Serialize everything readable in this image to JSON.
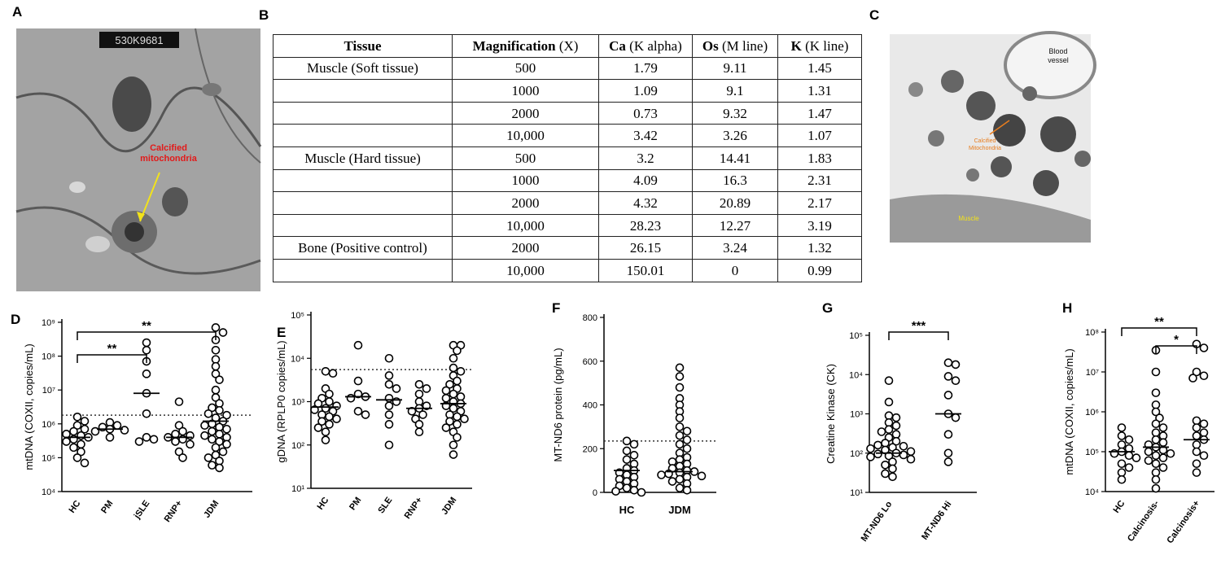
{
  "panel_labels": [
    "A",
    "B",
    "C",
    "D",
    "E",
    "F",
    "G",
    "H"
  ],
  "micrograph_a": {
    "stamp": "530K9681",
    "annotation": [
      "Calcified",
      "mitochondria"
    ]
  },
  "micrograph_c": {
    "vessel": [
      "Blood",
      "vessel"
    ],
    "mitochondria": [
      "Calcified",
      "Mitochondria"
    ],
    "muscle": "Muscle"
  },
  "table": {
    "header": [
      {
        "name": "Tissue"
      },
      {
        "name": "Magnification",
        "unit": "(X)"
      },
      {
        "name": "Ca",
        "unit": "(K alpha)"
      },
      {
        "name": "Os",
        "unit": "(M line)"
      },
      {
        "name": "K",
        "unit": "(K line)"
      }
    ],
    "rows": [
      [
        "Muscle (Soft tissue)",
        "500",
        "1.79",
        "9.11",
        "1.45"
      ],
      [
        null,
        "1000",
        "1.09",
        "9.1",
        "1.31"
      ],
      [
        null,
        "2000",
        "0.73",
        "9.32",
        "1.47"
      ],
      [
        null,
        "10,000",
        "3.42",
        "3.26",
        "1.07"
      ],
      [
        "Muscle (Hard tissue)",
        "500",
        "3.2",
        "14.41",
        "1.83"
      ],
      [
        null,
        "1000",
        "4.09",
        "16.3",
        "2.31"
      ],
      [
        null,
        "2000",
        "4.32",
        "20.89",
        "2.17"
      ],
      [
        null,
        "10,000",
        "28.23",
        "12.27",
        "3.19"
      ],
      [
        "Bone (Positive control)",
        "2000",
        "26.15",
        "3.24",
        "1.32"
      ],
      [
        null,
        "10,000",
        "150.01",
        "0",
        "0.99"
      ]
    ]
  },
  "chart_data": [
    {
      "type": "strip",
      "ylabel": "mtDNA (COXII, copies/mL)",
      "log_scale": true,
      "ylim": [
        10000,
        1000000000
      ],
      "yticks": [
        {
          "value": 10000,
          "label": "10⁴"
        },
        {
          "value": 100000,
          "label": "10⁵"
        },
        {
          "value": 1000000,
          "label": "10⁶"
        },
        {
          "value": 10000000,
          "label": "10⁷"
        },
        {
          "value": 100000000,
          "label": "10⁸"
        },
        {
          "value": 1000000000,
          "label": "10⁹"
        }
      ],
      "reference_line": 1800000,
      "groups": [
        {
          "name": "HC",
          "median": 400000,
          "values": [
            1600000,
            1200000,
            900000,
            700000,
            600000,
            500000,
            450000,
            400000,
            350000,
            300000,
            250000,
            200000,
            150000,
            100000,
            70000
          ]
        },
        {
          "name": "PM",
          "median": 700000,
          "values": [
            1100000,
            900000,
            800000,
            700000,
            650000,
            600000,
            400000
          ]
        },
        {
          "name": "jSLE",
          "median": 8000000,
          "values": [
            250000000,
            150000000,
            70000000,
            30000000,
            8000000,
            2000000,
            400000,
            350000,
            300000
          ]
        },
        {
          "name": "RNP+",
          "median": 400000,
          "values": [
            4500000,
            900000,
            600000,
            500000,
            450000,
            400000,
            350000,
            300000,
            250000,
            150000,
            100000
          ]
        },
        {
          "name": "JDM",
          "median": 1200000,
          "values": [
            700000000,
            500000000,
            300000000,
            150000000,
            80000000,
            50000000,
            30000000,
            20000000,
            10000000,
            6000000,
            4000000,
            3000000,
            2500000,
            2000000,
            1800000,
            1500000,
            1200000,
            1000000,
            900000,
            800000,
            700000,
            600000,
            500000,
            450000,
            400000,
            350000,
            300000,
            250000,
            200000,
            150000,
            120000,
            100000,
            80000,
            60000,
            50000
          ]
        }
      ],
      "annotations": [
        {
          "label": "**",
          "groups": [
            "HC",
            "jSLE"
          ]
        },
        {
          "label": "**",
          "groups": [
            "HC",
            "JDM"
          ]
        }
      ]
    },
    {
      "type": "strip",
      "ylabel": "gDNA (RPLP0 copies/mL)",
      "log_scale": true,
      "ylim": [
        10,
        100000
      ],
      "yticks": [
        {
          "value": 10,
          "label": "10¹"
        },
        {
          "value": 100,
          "label": "10²"
        },
        {
          "value": 1000,
          "label": "10³"
        },
        {
          "value": 10000,
          "label": "10⁴"
        },
        {
          "value": 100000,
          "label": "10⁵"
        }
      ],
      "reference_line": 5500,
      "groups": [
        {
          "name": "HC",
          "median": 750,
          "values": [
            5000,
            4500,
            2000,
            1500,
            1200,
            1000,
            900,
            800,
            700,
            650,
            600,
            500,
            450,
            400,
            350,
            300,
            250,
            200,
            130
          ]
        },
        {
          "name": "PM",
          "median": 1300,
          "values": [
            20000,
            3000,
            1500,
            1300,
            1200,
            600,
            500
          ]
        },
        {
          "name": "SLE",
          "median": 1100,
          "values": [
            10000,
            4000,
            2500,
            2000,
            1200,
            1000,
            800,
            500,
            300,
            100
          ]
        },
        {
          "name": "RNP+",
          "median": 700,
          "values": [
            2500,
            2000,
            1500,
            1000,
            800,
            700,
            600,
            500,
            400,
            300,
            200
          ]
        },
        {
          "name": "JDM",
          "median": 900,
          "values": [
            20000,
            20000,
            15000,
            10000,
            6000,
            5000,
            4000,
            3000,
            2500,
            2000,
            1800,
            1500,
            1300,
            1200,
            1000,
            900,
            800,
            700,
            600,
            500,
            450,
            400,
            350,
            300,
            250,
            200,
            150,
            100,
            60
          ]
        }
      ],
      "annotations": []
    },
    {
      "type": "strip",
      "ylabel": "MT-ND6 protein (pg/mL)",
      "log_scale": false,
      "ylim": [
        0,
        800
      ],
      "yticks": [
        0,
        200,
        400,
        600,
        800
      ],
      "reference_line": 235,
      "groups": [
        {
          "name": "HC",
          "median": 100,
          "values": [
            235,
            220,
            190,
            170,
            150,
            130,
            110,
            100,
            90,
            80,
            70,
            60,
            50,
            40,
            30,
            20,
            10,
            5,
            0
          ]
        },
        {
          "name": "JDM",
          "median": 95,
          "values": [
            570,
            530,
            480,
            430,
            400,
            370,
            340,
            300,
            280,
            260,
            240,
            220,
            200,
            180,
            160,
            150,
            140,
            130,
            120,
            110,
            100,
            95,
            90,
            85,
            80,
            75,
            70,
            60,
            50,
            40,
            20,
            10
          ]
        }
      ],
      "annotations": []
    },
    {
      "type": "strip",
      "ylabel": "Creatine Kinase (CK)",
      "log_scale": true,
      "ylim": [
        10,
        100000
      ],
      "yticks": [
        {
          "value": 10,
          "label": "10¹"
        },
        {
          "value": 100,
          "label": "10²"
        },
        {
          "value": 1000,
          "label": "10³"
        },
        {
          "value": 10000,
          "label": "10⁴"
        },
        {
          "value": 100000,
          "label": "10⁵"
        }
      ],
      "groups": [
        {
          "name": "MT-ND6 Lo",
          "median": 100,
          "values": [
            7000,
            2000,
            900,
            800,
            600,
            500,
            400,
            350,
            300,
            250,
            200,
            180,
            160,
            150,
            140,
            130,
            120,
            110,
            100,
            95,
            90,
            85,
            80,
            70,
            60,
            50,
            40,
            30,
            25
          ]
        },
        {
          "name": "MT-ND6 Hi",
          "median": 1000,
          "values": [
            20000,
            18000,
            9000,
            7000,
            3000,
            1000,
            800,
            300,
            100,
            60
          ]
        }
      ],
      "annotations": [
        {
          "label": "***",
          "groups": [
            "MT-ND6 Lo",
            "MT-ND6 Hi"
          ]
        }
      ]
    },
    {
      "type": "strip",
      "ylabel": "mtDNA (COXII, copies/mL)",
      "log_scale": true,
      "ylim": [
        10000,
        100000000
      ],
      "yticks": [
        {
          "value": 10000,
          "label": "10⁴"
        },
        {
          "value": 100000,
          "label": "10⁵"
        },
        {
          "value": 1000000,
          "label": "10⁶"
        },
        {
          "value": 10000000,
          "label": "10⁷"
        },
        {
          "value": 100000000,
          "label": "10⁸"
        }
      ],
      "groups": [
        {
          "name": "HC",
          "median": 100000,
          "values": [
            400000,
            250000,
            200000,
            150000,
            120000,
            100000,
            90000,
            80000,
            70000,
            50000,
            40000,
            30000,
            20000
          ]
        },
        {
          "name": "Calcinosis-",
          "median": 130000,
          "values": [
            35000000,
            10000000,
            3000000,
            1500000,
            1000000,
            700000,
            500000,
            400000,
            300000,
            250000,
            200000,
            170000,
            150000,
            130000,
            110000,
            100000,
            90000,
            80000,
            70000,
            60000,
            50000,
            40000,
            30000,
            20000,
            12000
          ]
        },
        {
          "name": "Calcinosis+",
          "median": 200000,
          "values": [
            50000000,
            40000000,
            10000000,
            8000000,
            7000000,
            600000,
            500000,
            400000,
            300000,
            250000,
            200000,
            150000,
            100000,
            80000,
            50000,
            30000
          ]
        }
      ],
      "annotations": [
        {
          "label": "**",
          "groups": [
            "HC",
            "Calcinosis+"
          ]
        },
        {
          "label": "*",
          "groups": [
            "Calcinosis-",
            "Calcinosis+"
          ]
        }
      ]
    }
  ]
}
